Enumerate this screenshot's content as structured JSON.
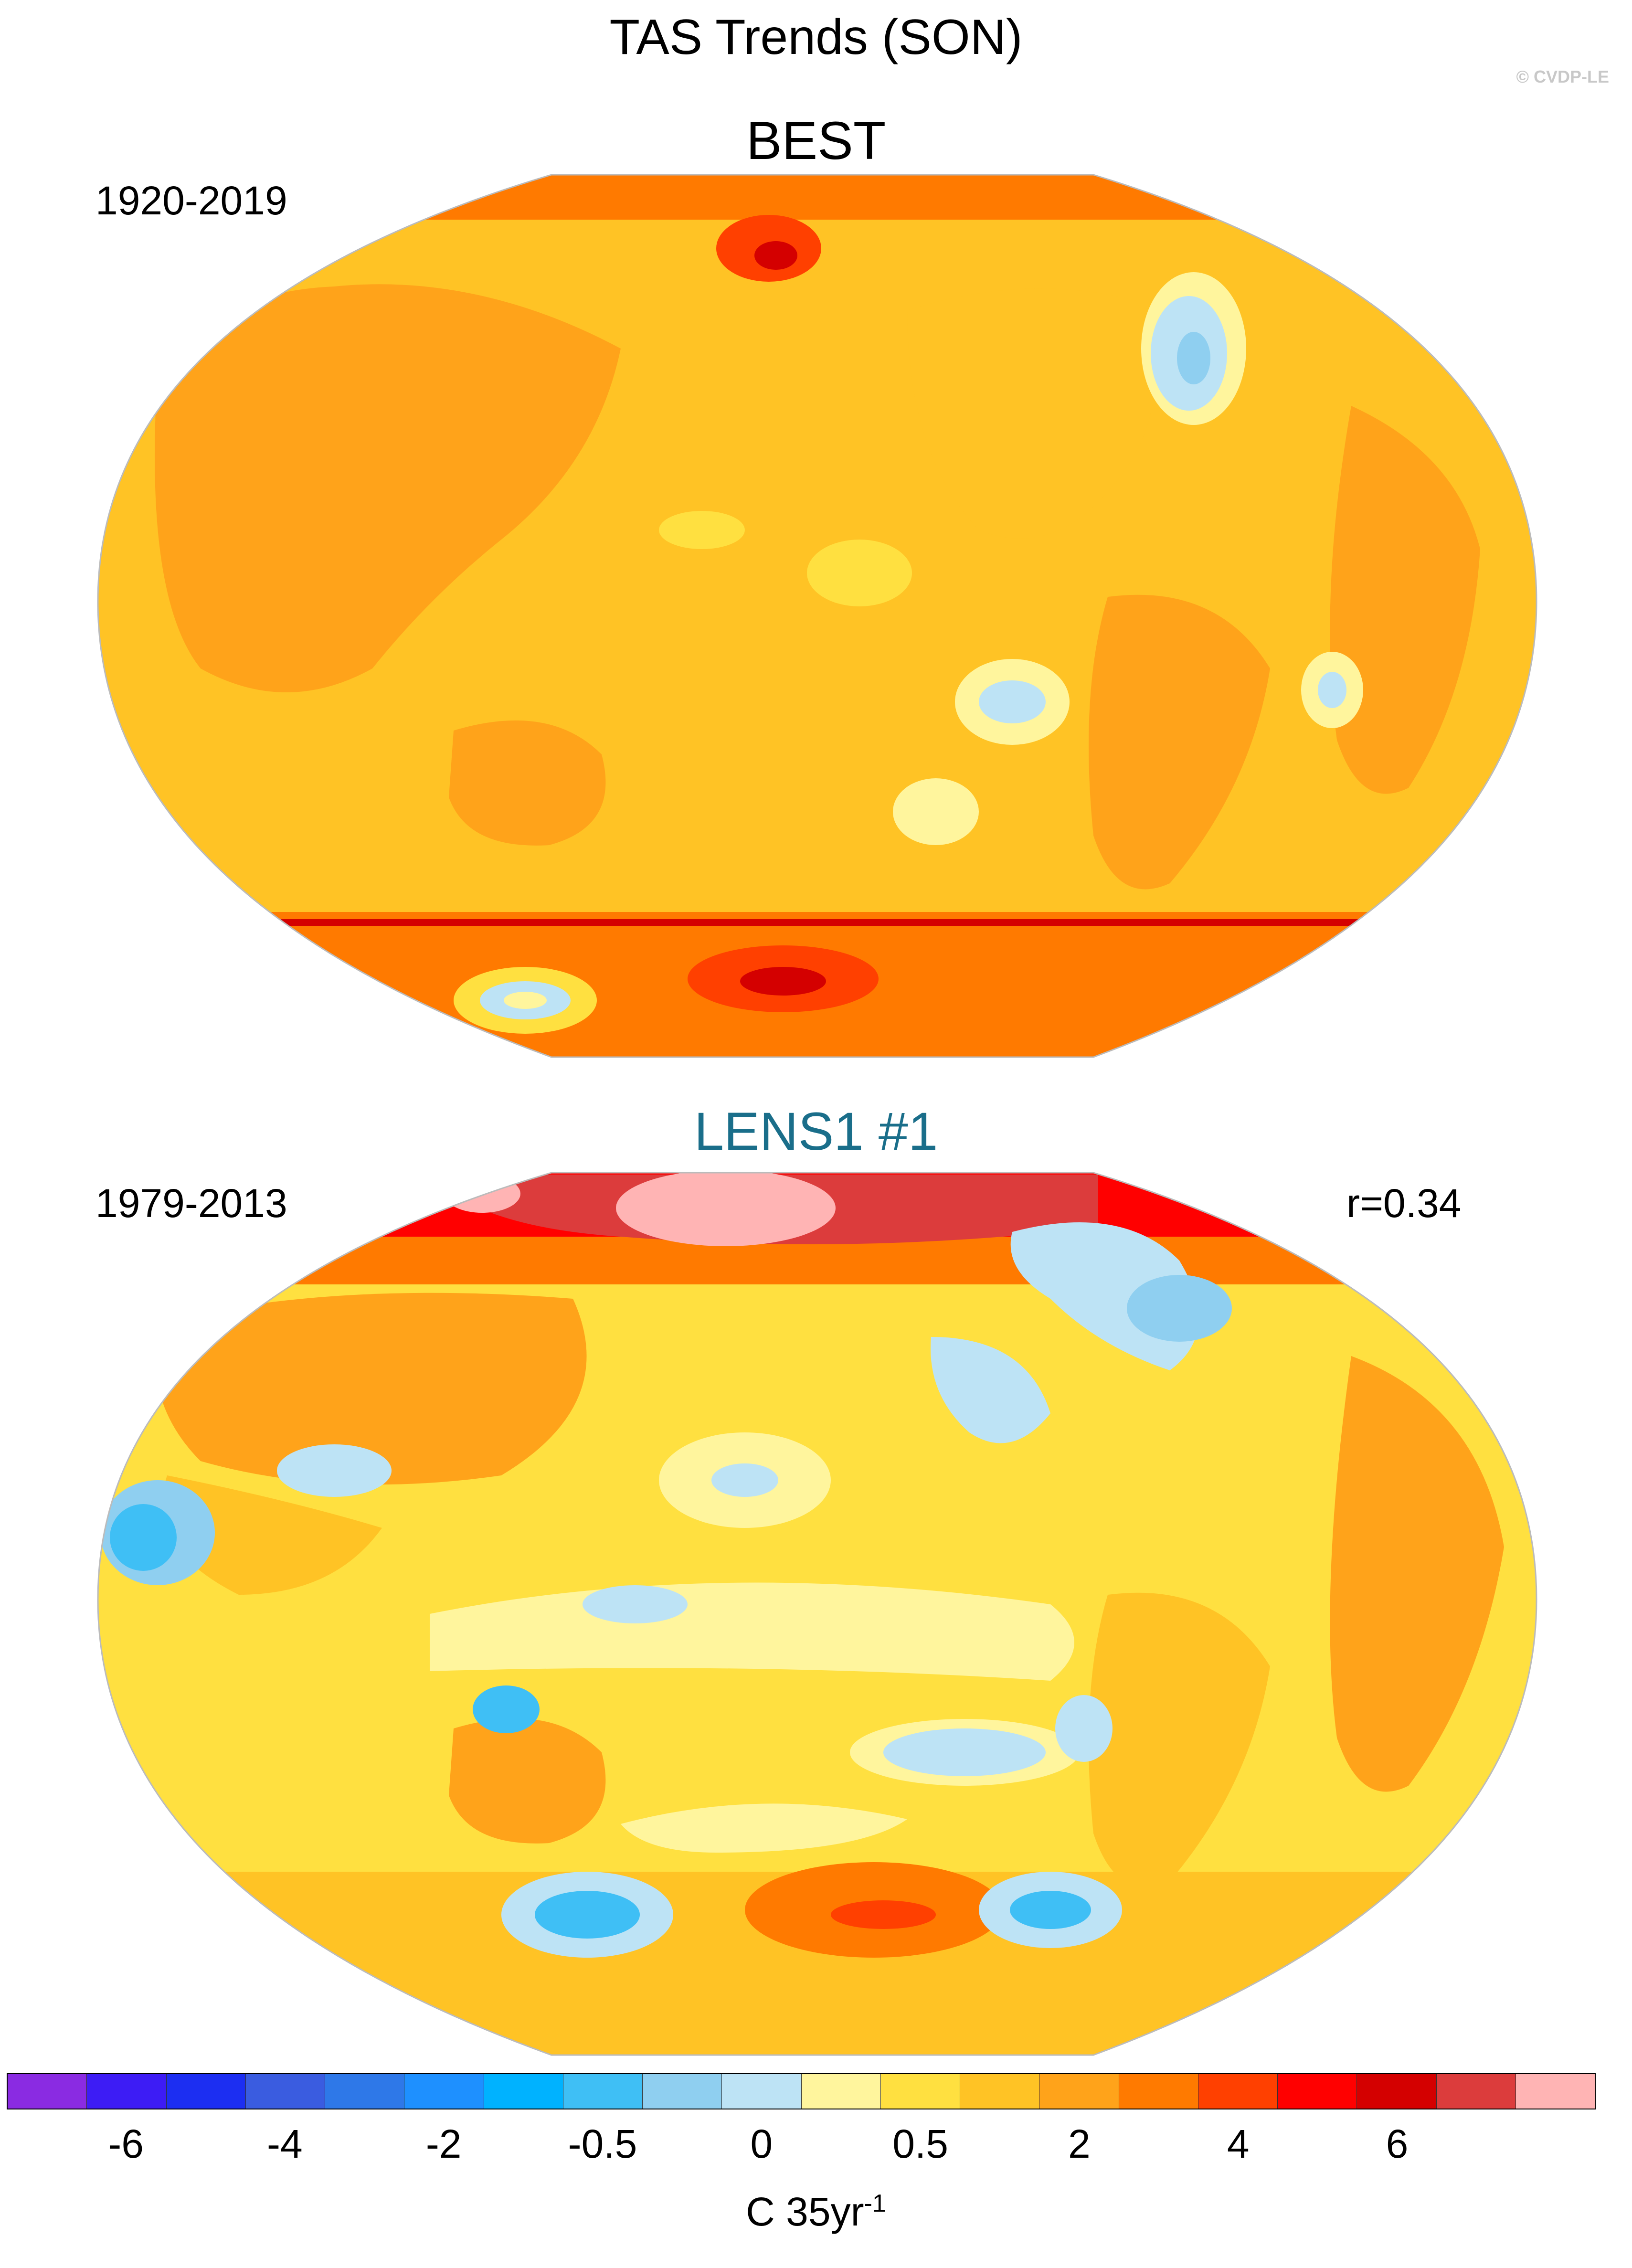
{
  "figure": {
    "title": "TAS Trends (SON)",
    "credit": "© CVDP-LE"
  },
  "panels": [
    {
      "name": "BEST",
      "period": "1920-2019",
      "stat": "",
      "title_color": "#000000"
    },
    {
      "name": "LENS1 #1",
      "period": "1979-2013",
      "stat": "r=0.34",
      "title_color": "#1a6e8a"
    }
  ],
  "colorbar": {
    "colors": [
      "#8a2be2",
      "#3d1cf5",
      "#1c2ef2",
      "#3a5ce0",
      "#2e78e8",
      "#1e90ff",
      "#00b2ff",
      "#3fbff5",
      "#8fcff0",
      "#bde3f5",
      "#fff59d",
      "#ffe040",
      "#ffc325",
      "#ffa31a",
      "#ff7a00",
      "#ff4000",
      "#ff0000",
      "#d40000",
      "#dc3c3c",
      "#ffb4b4"
    ],
    "tick_labels": [
      "-6",
      "-4",
      "-2",
      "-0.5",
      "0",
      "0.5",
      "2",
      "4",
      "6"
    ],
    "units": "C 35yr",
    "units_exponent": "-1"
  },
  "map_fill": {
    "best_base": "#ffc325",
    "best_land": "#ffa31a",
    "lens_base": "#ffe040",
    "lens_land": "#ffa31a",
    "warm": "#ff7a00",
    "hot": "#ff0000",
    "very_hot": "#d40000",
    "pink": "#ffb4b4",
    "cool": "#bde3f5",
    "cooler": "#8fcff0",
    "coolest": "#3fbff5",
    "pale": "#fff59d",
    "coast": "#7a7a7a"
  }
}
